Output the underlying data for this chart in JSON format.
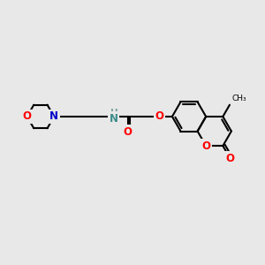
{
  "background_color": "#e8e8e8",
  "bond_color": "#000000",
  "bond_width": 1.5,
  "font_size": 8.5,
  "figsize": [
    3.0,
    3.0
  ],
  "dpi": 100,
  "colors": {
    "O": "#ff0000",
    "N_morph": "#0000cc",
    "N_amide": "#3d8b8b",
    "C": "#000000",
    "H_label": "#7a9ea0"
  },
  "xlim": [
    0,
    10
  ],
  "ylim": [
    0,
    10
  ]
}
